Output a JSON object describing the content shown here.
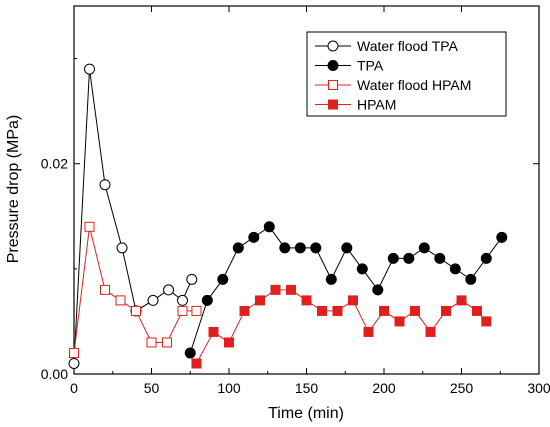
{
  "chart_data": {
    "type": "line",
    "xlabel": "Time (min)",
    "ylabel": "Pressure drop (MPa)",
    "xlim": [
      0,
      300
    ],
    "ylim": [
      0,
      0.035
    ],
    "x_ticks": [
      0,
      50,
      100,
      150,
      200,
      250,
      300
    ],
    "x_tick_labels": [
      "0",
      "50",
      "100",
      "150",
      "200",
      "250",
      "300"
    ],
    "y_ticks": [
      0,
      0.02
    ],
    "y_tick_labels": [
      "0.00",
      "0.02"
    ],
    "grid": false,
    "legend_position": "top-right",
    "series": [
      {
        "name": "Water flood TPA",
        "color": "#000000",
        "marker": "circle-open",
        "x": [
          0,
          10,
          20,
          31,
          40,
          51,
          61,
          70,
          76
        ],
        "y": [
          0.001,
          0.029,
          0.018,
          0.012,
          0.006,
          0.007,
          0.008,
          0.007,
          0.009
        ]
      },
      {
        "name": "TPA",
        "color": "#000000",
        "marker": "circle-filled",
        "x": [
          75,
          86,
          96,
          106,
          116,
          126,
          136,
          146,
          156,
          166,
          176,
          186,
          196,
          206,
          216,
          226,
          236,
          246,
          256,
          266,
          276
        ],
        "y": [
          0.002,
          0.007,
          0.009,
          0.012,
          0.013,
          0.014,
          0.012,
          0.012,
          0.012,
          0.009,
          0.012,
          0.01,
          0.008,
          0.011,
          0.011,
          0.012,
          0.011,
          0.01,
          0.009,
          0.011,
          0.013
        ]
      },
      {
        "name": "Water flood HPAM",
        "color": "#e02020",
        "marker": "square-open",
        "x": [
          0,
          10,
          20,
          30,
          40,
          50,
          60,
          70,
          79
        ],
        "y": [
          0.002,
          0.014,
          0.008,
          0.007,
          0.006,
          0.003,
          0.003,
          0.006,
          0.006
        ]
      },
      {
        "name": "HPAM",
        "color": "#e02020",
        "marker": "square-filled",
        "x": [
          79,
          90,
          100,
          110,
          120,
          130,
          140,
          150,
          160,
          170,
          180,
          190,
          200,
          210,
          220,
          230,
          240,
          250,
          260,
          266
        ],
        "y": [
          0.001,
          0.004,
          0.003,
          0.006,
          0.007,
          0.008,
          0.008,
          0.007,
          0.006,
          0.006,
          0.007,
          0.004,
          0.006,
          0.005,
          0.006,
          0.004,
          0.006,
          0.007,
          0.006,
          0.005
        ]
      }
    ]
  }
}
